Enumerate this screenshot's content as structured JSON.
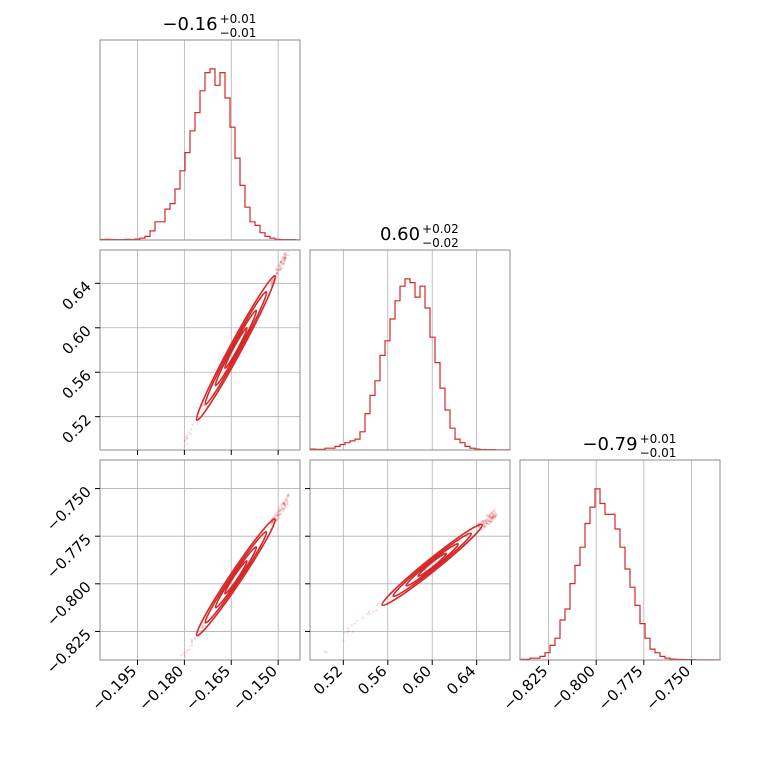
{
  "chart_data": {
    "type": "corner",
    "color": "#d62728",
    "parameters": [
      {
        "title": {
          "median": "−0.16",
          "plus": "+0.01",
          "minus": "−0.01"
        },
        "range": [
          -0.207,
          -0.143
        ],
        "ticks": [
          {
            "value": -0.195,
            "label": "−0.195"
          },
          {
            "value": -0.18,
            "label": "−0.180"
          },
          {
            "value": -0.165,
            "label": "−0.165"
          },
          {
            "value": -0.15,
            "label": "−0.150"
          }
        ],
        "histogram": {
          "bin_start": -0.207,
          "bin_width": 0.0016,
          "counts": [
            0.003,
            0.004,
            0.003,
            0.002,
            0.002,
            0.004,
            0.003,
            0.005,
            0.01,
            0.02,
            0.05,
            0.1,
            0.1,
            0.17,
            0.2,
            0.28,
            0.38,
            0.48,
            0.6,
            0.7,
            0.82,
            0.92,
            0.94,
            0.85,
            0.92,
            0.78,
            0.62,
            0.45,
            0.3,
            0.18,
            0.1,
            0.08,
            0.04,
            0.02,
            0.01,
            0.004,
            0.002,
            0.002,
            0.002,
            0.001
          ]
        }
      },
      {
        "title": {
          "median": "0.60",
          "plus": "+0.02",
          "minus": "−0.02"
        },
        "range": [
          0.49,
          0.67
        ],
        "ticks": [
          {
            "value": 0.52,
            "label": "0.52"
          },
          {
            "value": 0.56,
            "label": "0.56"
          },
          {
            "value": 0.6,
            "label": "0.60"
          },
          {
            "value": 0.64,
            "label": "0.64"
          }
        ],
        "histogram": {
          "bin_start": 0.49,
          "bin_width": 0.0045,
          "counts": [
            0.005,
            0.004,
            0.004,
            0.01,
            0.01,
            0.02,
            0.03,
            0.04,
            0.05,
            0.06,
            0.1,
            0.2,
            0.3,
            0.38,
            0.52,
            0.6,
            0.72,
            0.82,
            0.9,
            0.94,
            0.92,
            0.84,
            0.9,
            0.78,
            0.62,
            0.48,
            0.34,
            0.22,
            0.12,
            0.06,
            0.04,
            0.02,
            0.01,
            0.005,
            0.003,
            0.002,
            0.002,
            0.001,
            0.001,
            0.001
          ]
        }
      },
      {
        "title": {
          "median": "−0.79",
          "plus": "+0.01",
          "minus": "−0.01"
        },
        "range": [
          -0.84,
          -0.735
        ],
        "ticks": [
          {
            "value": -0.825,
            "label": "−0.825"
          },
          {
            "value": -0.8,
            "label": "−0.800"
          },
          {
            "value": -0.775,
            "label": "−0.775"
          },
          {
            "value": -0.75,
            "label": "−0.750"
          }
        ],
        "histogram": {
          "bin_start": -0.84,
          "bin_width": 0.002625,
          "counts": [
            0.004,
            0.004,
            0.01,
            0.01,
            0.02,
            0.04,
            0.08,
            0.12,
            0.22,
            0.28,
            0.42,
            0.52,
            0.62,
            0.75,
            0.84,
            0.94,
            0.86,
            0.8,
            0.8,
            0.72,
            0.62,
            0.5,
            0.4,
            0.3,
            0.2,
            0.12,
            0.06,
            0.04,
            0.02,
            0.01,
            0.005,
            0.004,
            0.003,
            0.002,
            0.002,
            0.001,
            0.001,
            0.001,
            0.001,
            0.001
          ]
        }
      }
    ],
    "pairs": [
      {
        "x": 0,
        "y": 1,
        "slope": 5.2,
        "intercept": 1.432,
        "x_samples": [
          -0.207,
          -0.172
        ],
        "x_contours": [
          -0.176,
          -0.151
        ]
      },
      {
        "x": 0,
        "y": 2,
        "slope": 2.45,
        "intercept": -0.396,
        "x_samples": [
          -0.207,
          -0.172
        ],
        "x_contours": [
          -0.176,
          -0.151
        ]
      },
      {
        "x": 1,
        "y": 2,
        "slope": 0.47,
        "intercept": -1.072,
        "x_samples": [
          0.49,
          0.66
        ],
        "x_contours": [
          0.555,
          0.645
        ]
      }
    ]
  }
}
